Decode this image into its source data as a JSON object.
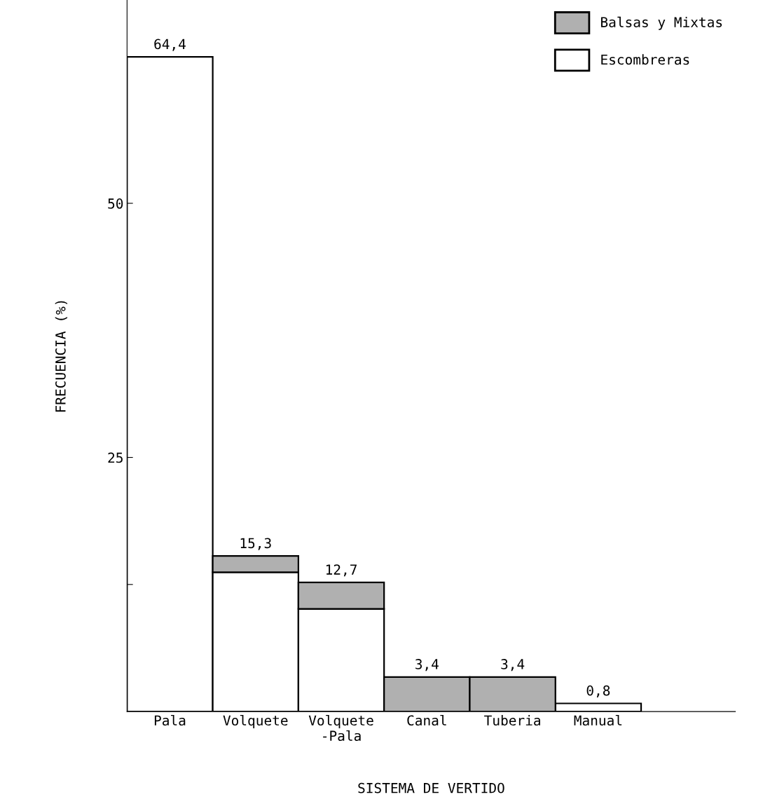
{
  "chart_data": {
    "type": "bar",
    "stacked": true,
    "xlabel": "SISTEMA DE VERTIDO",
    "ylabel": "FRECUENCIA (%)",
    "categories": [
      "Pala",
      "Volquete",
      "Volquete\n-Pala",
      "Canal",
      "Tuberia",
      "Manual"
    ],
    "series": [
      {
        "name": "Escombreras",
        "color": "#ffffff",
        "values": [
          64.4,
          13.7,
          10.1,
          null,
          null,
          0.8
        ]
      },
      {
        "name": "Balsas y Mixtas",
        "color": "#b0b0b0",
        "values": [
          null,
          1.6,
          2.6,
          3.4,
          3.4,
          null
        ]
      }
    ],
    "totals": [
      "64,4",
      "15,3",
      "12,7",
      "3,4",
      "3,4",
      "0,8"
    ],
    "ylim": [
      0,
      70
    ],
    "yticks": [
      {
        "value": 12.5,
        "label": null
      },
      25,
      50
    ],
    "legend": "top right",
    "grid": false
  }
}
